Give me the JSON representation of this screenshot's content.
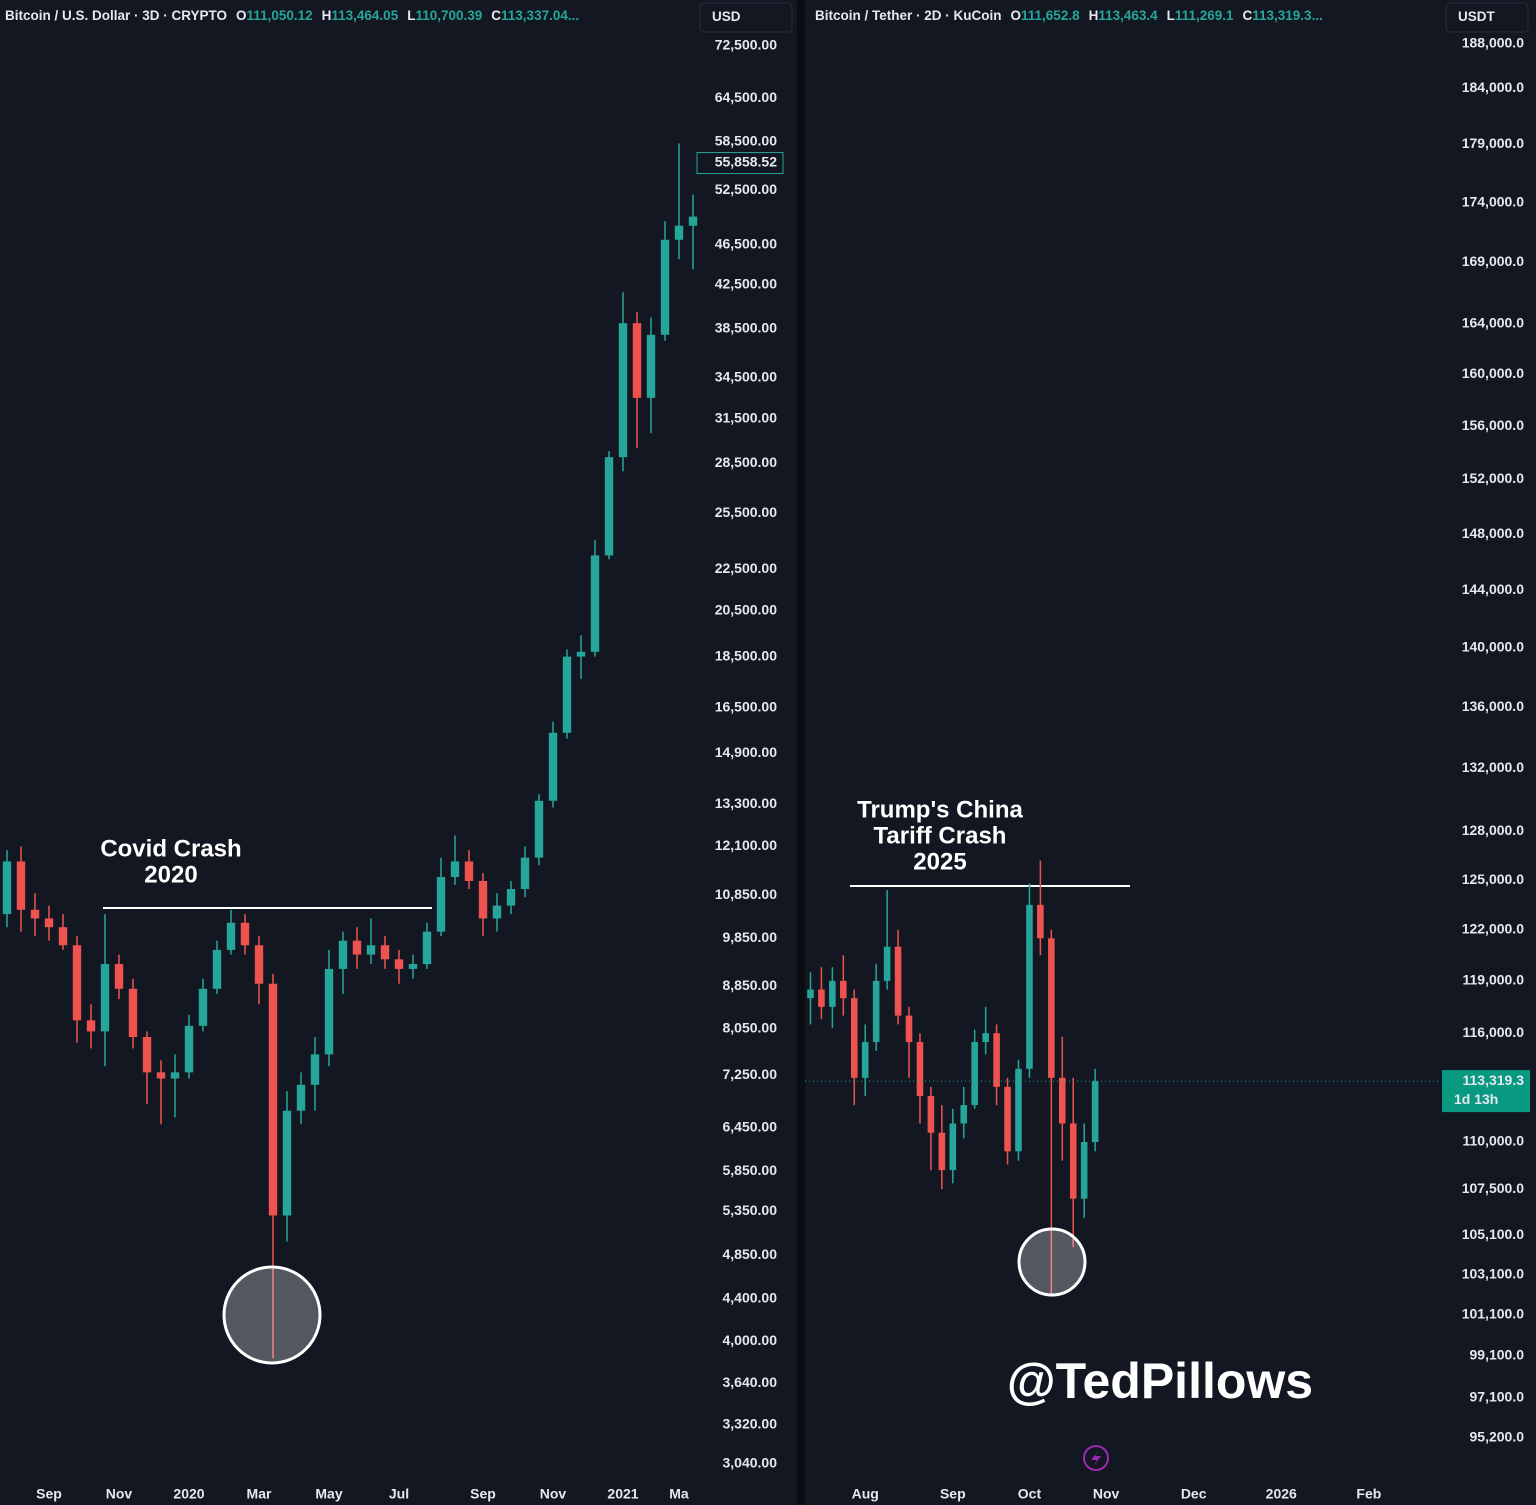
{
  "chart_data": [
    {
      "type": "candlestick",
      "title": "Bitcoin / U.S. Dollar · 3D · CRYPTO",
      "ohlc": [
        {
          "label": "O",
          "value": "111,050.12"
        },
        {
          "label": "H",
          "value": "113,464.05"
        },
        {
          "label": "L",
          "value": "110,700.39"
        },
        {
          "label": "C",
          "value": "113,337.04..."
        }
      ],
      "currency": "USD",
      "log_scale": true,
      "grid": false,
      "colors": {
        "up": "#26a69a",
        "down": "#ef5350"
      },
      "categories": [
        null,
        null,
        null,
        "Sep",
        null,
        null,
        null,
        null,
        "Nov",
        null,
        null,
        null,
        null,
        "2020",
        null,
        null,
        null,
        null,
        "Mar",
        null,
        null,
        null,
        null,
        "May",
        null,
        null,
        null,
        null,
        "Jul",
        null,
        null,
        null,
        null,
        null,
        "Sep",
        null,
        null,
        null,
        null,
        "Nov",
        null,
        null,
        null,
        null,
        "2021",
        null,
        null,
        null,
        "Ma",
        null
      ],
      "open": [
        10400,
        11700,
        10500,
        10300,
        10100,
        9700,
        8200,
        8000,
        9300,
        8800,
        7900,
        7300,
        7200,
        7300,
        8100,
        8800,
        9600,
        10200,
        9700,
        8900,
        5300,
        6700,
        7100,
        7600,
        9200,
        9800,
        9500,
        9700,
        9400,
        9200,
        9300,
        10000,
        11300,
        11700,
        11200,
        10300,
        10600,
        11000,
        11800,
        13400,
        15600,
        18500,
        18700,
        23200,
        28900,
        39000,
        33000,
        38000,
        47000,
        48500
      ],
      "high": [
        12000,
        12100,
        10900,
        10600,
        10400,
        9900,
        8500,
        10400,
        9500,
        9000,
        8000,
        7500,
        7600,
        8300,
        9000,
        9800,
        10500,
        10400,
        9900,
        9100,
        7000,
        7300,
        7900,
        9600,
        10000,
        10100,
        10300,
        9900,
        9600,
        9500,
        10200,
        11800,
        12400,
        12000,
        11400,
        10900,
        11200,
        12100,
        13600,
        16000,
        18800,
        19400,
        24000,
        29300,
        41800,
        40000,
        39500,
        49000,
        58300,
        52000
      ],
      "low": [
        10100,
        10000,
        9900,
        9800,
        9600,
        7800,
        7700,
        7400,
        8600,
        7700,
        6800,
        6500,
        6600,
        7200,
        8000,
        8700,
        9500,
        9500,
        8500,
        3850,
        5000,
        6500,
        6700,
        7400,
        8700,
        9200,
        9300,
        9200,
        8900,
        9000,
        9200,
        9900,
        11100,
        11000,
        9900,
        10000,
        10400,
        10800,
        11600,
        13200,
        15400,
        17600,
        18500,
        23000,
        28000,
        29500,
        30500,
        37500,
        45000,
        44000
      ],
      "close": [
        11700,
        10500,
        10300,
        10100,
        9700,
        8200,
        8000,
        9300,
        8800,
        7900,
        7300,
        7200,
        7300,
        8100,
        8800,
        9600,
        10200,
        9700,
        8900,
        5300,
        6700,
        7100,
        7600,
        9200,
        9800,
        9500,
        9700,
        9400,
        9200,
        9300,
        10000,
        11300,
        11700,
        11200,
        10300,
        10600,
        11000,
        11800,
        13400,
        15600,
        18500,
        18700,
        23200,
        28900,
        39000,
        33000,
        38000,
        47000,
        48500,
        49500
      ],
      "ylim": [
        2933,
        75140
      ],
      "yticks": [
        {
          "value": 72500,
          "label": "72,500.00"
        },
        {
          "value": 64500,
          "label": "64,500.00"
        },
        {
          "value": 58500,
          "label": "58,500.00"
        },
        {
          "value": 52500,
          "label": "52,500.00"
        },
        {
          "value": 46500,
          "label": "46,500.00"
        },
        {
          "value": 42500,
          "label": "42,500.00"
        },
        {
          "value": 38500,
          "label": "38,500.00"
        },
        {
          "value": 34500,
          "label": "34,500.00"
        },
        {
          "value": 31500,
          "label": "31,500.00"
        },
        {
          "value": 28500,
          "label": "28,500.00"
        },
        {
          "value": 25500,
          "label": "25,500.00"
        },
        {
          "value": 22500,
          "label": "22,500.00"
        },
        {
          "value": 20500,
          "label": "20,500.00"
        },
        {
          "value": 18500,
          "label": "18,500.00"
        },
        {
          "value": 16500,
          "label": "16,500.00"
        },
        {
          "value": 14900,
          "label": "14,900.00"
        },
        {
          "value": 13300,
          "label": "13,300.00"
        },
        {
          "value": 12100,
          "label": "12,100.00"
        },
        {
          "value": 10850,
          "label": "10,850.00"
        },
        {
          "value": 9850,
          "label": "9,850.00"
        },
        {
          "value": 8850,
          "label": "8,850.00"
        },
        {
          "value": 8050,
          "label": "8,050.00"
        },
        {
          "value": 7250,
          "label": "7,250.00"
        },
        {
          "value": 6450,
          "label": "6,450.00"
        },
        {
          "value": 5850,
          "label": "5,850.00"
        },
        {
          "value": 5350,
          "label": "5,350.00"
        },
        {
          "value": 4850,
          "label": "4,850.00"
        },
        {
          "value": 4400,
          "label": "4,400.00"
        },
        {
          "value": 4000,
          "label": "4,000.00"
        },
        {
          "value": 3640,
          "label": "3,640.00"
        },
        {
          "value": 3320,
          "label": "3,320.00"
        },
        {
          "value": 3040,
          "label": "3,040.00"
        }
      ],
      "price_tag": {
        "value": 55858.52,
        "label": "55,858.52"
      },
      "price_line": false,
      "annotation": [
        "Covid Crash",
        "2020"
      ]
    },
    {
      "type": "candlestick",
      "title": "Bitcoin / Tether · 2D · KuCoin",
      "ohlc": [
        {
          "label": "O",
          "value": "111,652.8"
        },
        {
          "label": "H",
          "value": "113,463.4"
        },
        {
          "label": "L",
          "value": "111,269.1"
        },
        {
          "label": "C",
          "value": "113,319.3..."
        }
      ],
      "currency": "USDT",
      "log_scale": true,
      "grid": false,
      "colors": {
        "up": "#26a69a",
        "down": "#ef5350"
      },
      "categories": [
        null,
        null,
        null,
        null,
        null,
        "Aug",
        null,
        null,
        null,
        null,
        null,
        null,
        null,
        "Sep",
        null,
        null,
        null,
        null,
        null,
        null,
        "Oct",
        null,
        null,
        null,
        null,
        null,
        null,
        "Nov",
        null,
        null,
        null,
        null,
        null,
        null,
        null,
        "Dec",
        null,
        null,
        null,
        null,
        null,
        null,
        null,
        "2026",
        null,
        null,
        null,
        null,
        null,
        null,
        null,
        "Feb",
        null,
        null,
        null,
        null,
        null,
        null
      ],
      "open": [
        118000,
        118500,
        117500,
        119000,
        118000,
        113500,
        115500,
        119000,
        121000,
        117000,
        115500,
        112500,
        110500,
        108500,
        111000,
        112000,
        115500,
        116000,
        113000,
        109500,
        114000,
        123500,
        121500,
        113500,
        111000,
        107000,
        110000,
        null,
        null,
        null,
        null,
        null,
        null,
        null,
        null,
        null,
        null,
        null,
        null,
        null,
        null,
        null,
        null,
        null,
        null,
        null,
        null,
        null,
        null,
        null,
        null,
        null,
        null,
        null,
        null,
        null,
        null,
        null
      ],
      "high": [
        119500,
        119800,
        119800,
        120500,
        118500,
        116500,
        120000,
        124400,
        122000,
        117500,
        116000,
        113000,
        112000,
        111800,
        113000,
        116200,
        117500,
        116500,
        113500,
        114500,
        124800,
        126200,
        122000,
        115800,
        113500,
        111000,
        114000,
        null,
        null,
        null,
        null,
        null,
        null,
        null,
        null,
        null,
        null,
        null,
        null,
        null,
        null,
        null,
        null,
        null,
        null,
        null,
        null,
        null,
        null,
        null,
        null,
        null,
        null,
        null,
        null,
        null,
        null,
        null
      ],
      "low": [
        116500,
        116800,
        116300,
        117000,
        112000,
        112500,
        115000,
        118500,
        116500,
        113500,
        111000,
        108500,
        107500,
        107800,
        110200,
        111800,
        114800,
        112000,
        108800,
        109000,
        113500,
        120500,
        102000,
        109000,
        104500,
        106000,
        109500,
        null,
        null,
        null,
        null,
        null,
        null,
        null,
        null,
        null,
        null,
        null,
        null,
        null,
        null,
        null,
        null,
        null,
        null,
        null,
        null,
        null,
        null,
        null,
        null,
        null,
        null,
        null,
        null,
        null,
        null,
        null
      ],
      "close": [
        118500,
        117500,
        119000,
        118000,
        113500,
        115500,
        119000,
        121000,
        117000,
        115500,
        112500,
        110500,
        108500,
        111000,
        112000,
        115500,
        116000,
        113000,
        109500,
        114000,
        123500,
        121500,
        113500,
        111000,
        107000,
        110000,
        113319.3,
        null,
        null,
        null,
        null,
        null,
        null,
        null,
        null,
        null,
        null,
        null,
        null,
        null,
        null,
        null,
        null,
        null,
        null,
        null,
        null,
        null,
        null,
        null,
        null,
        null,
        null,
        null,
        null,
        null,
        null,
        null
      ],
      "ylim": [
        93270,
        189290
      ],
      "yticks": [
        {
          "value": 188000,
          "label": "188,000.0"
        },
        {
          "value": 184000,
          "label": "184,000.0"
        },
        {
          "value": 179000,
          "label": "179,000.0"
        },
        {
          "value": 174000,
          "label": "174,000.0"
        },
        {
          "value": 169000,
          "label": "169,000.0"
        },
        {
          "value": 164000,
          "label": "164,000.0"
        },
        {
          "value": 160000,
          "label": "160,000.0"
        },
        {
          "value": 156000,
          "label": "156,000.0"
        },
        {
          "value": 152000,
          "label": "152,000.0"
        },
        {
          "value": 148000,
          "label": "148,000.0"
        },
        {
          "value": 144000,
          "label": "144,000.0"
        },
        {
          "value": 140000,
          "label": "140,000.0"
        },
        {
          "value": 136000,
          "label": "136,000.0"
        },
        {
          "value": 132000,
          "label": "132,000.0"
        },
        {
          "value": 128000,
          "label": "128,000.0"
        },
        {
          "value": 125000,
          "label": "125,000.0"
        },
        {
          "value": 122000,
          "label": "122,000.0"
        },
        {
          "value": 119000,
          "label": "119,000.0"
        },
        {
          "value": 116000,
          "label": "116,000.0"
        },
        {
          "value": 110000,
          "label": "110,000.0"
        },
        {
          "value": 107500,
          "label": "107,500.0"
        },
        {
          "value": 105100,
          "label": "105,100.0"
        },
        {
          "value": 103100,
          "label": "103,100.0"
        },
        {
          "value": 101100,
          "label": "101,100.0"
        },
        {
          "value": 99100,
          "label": "99,100.0"
        },
        {
          "value": 97100,
          "label": "97,100.0"
        },
        {
          "value": 95200,
          "label": "95,200.0"
        }
      ],
      "price_tag": {
        "value": 113319.3,
        "label": "113,319.3",
        "countdown": "1d 13h"
      },
      "price_line": true,
      "annotation": [
        "Trump's China",
        "Tariff Crash",
        "2025"
      ]
    }
  ],
  "watermark": "@TedPillows"
}
